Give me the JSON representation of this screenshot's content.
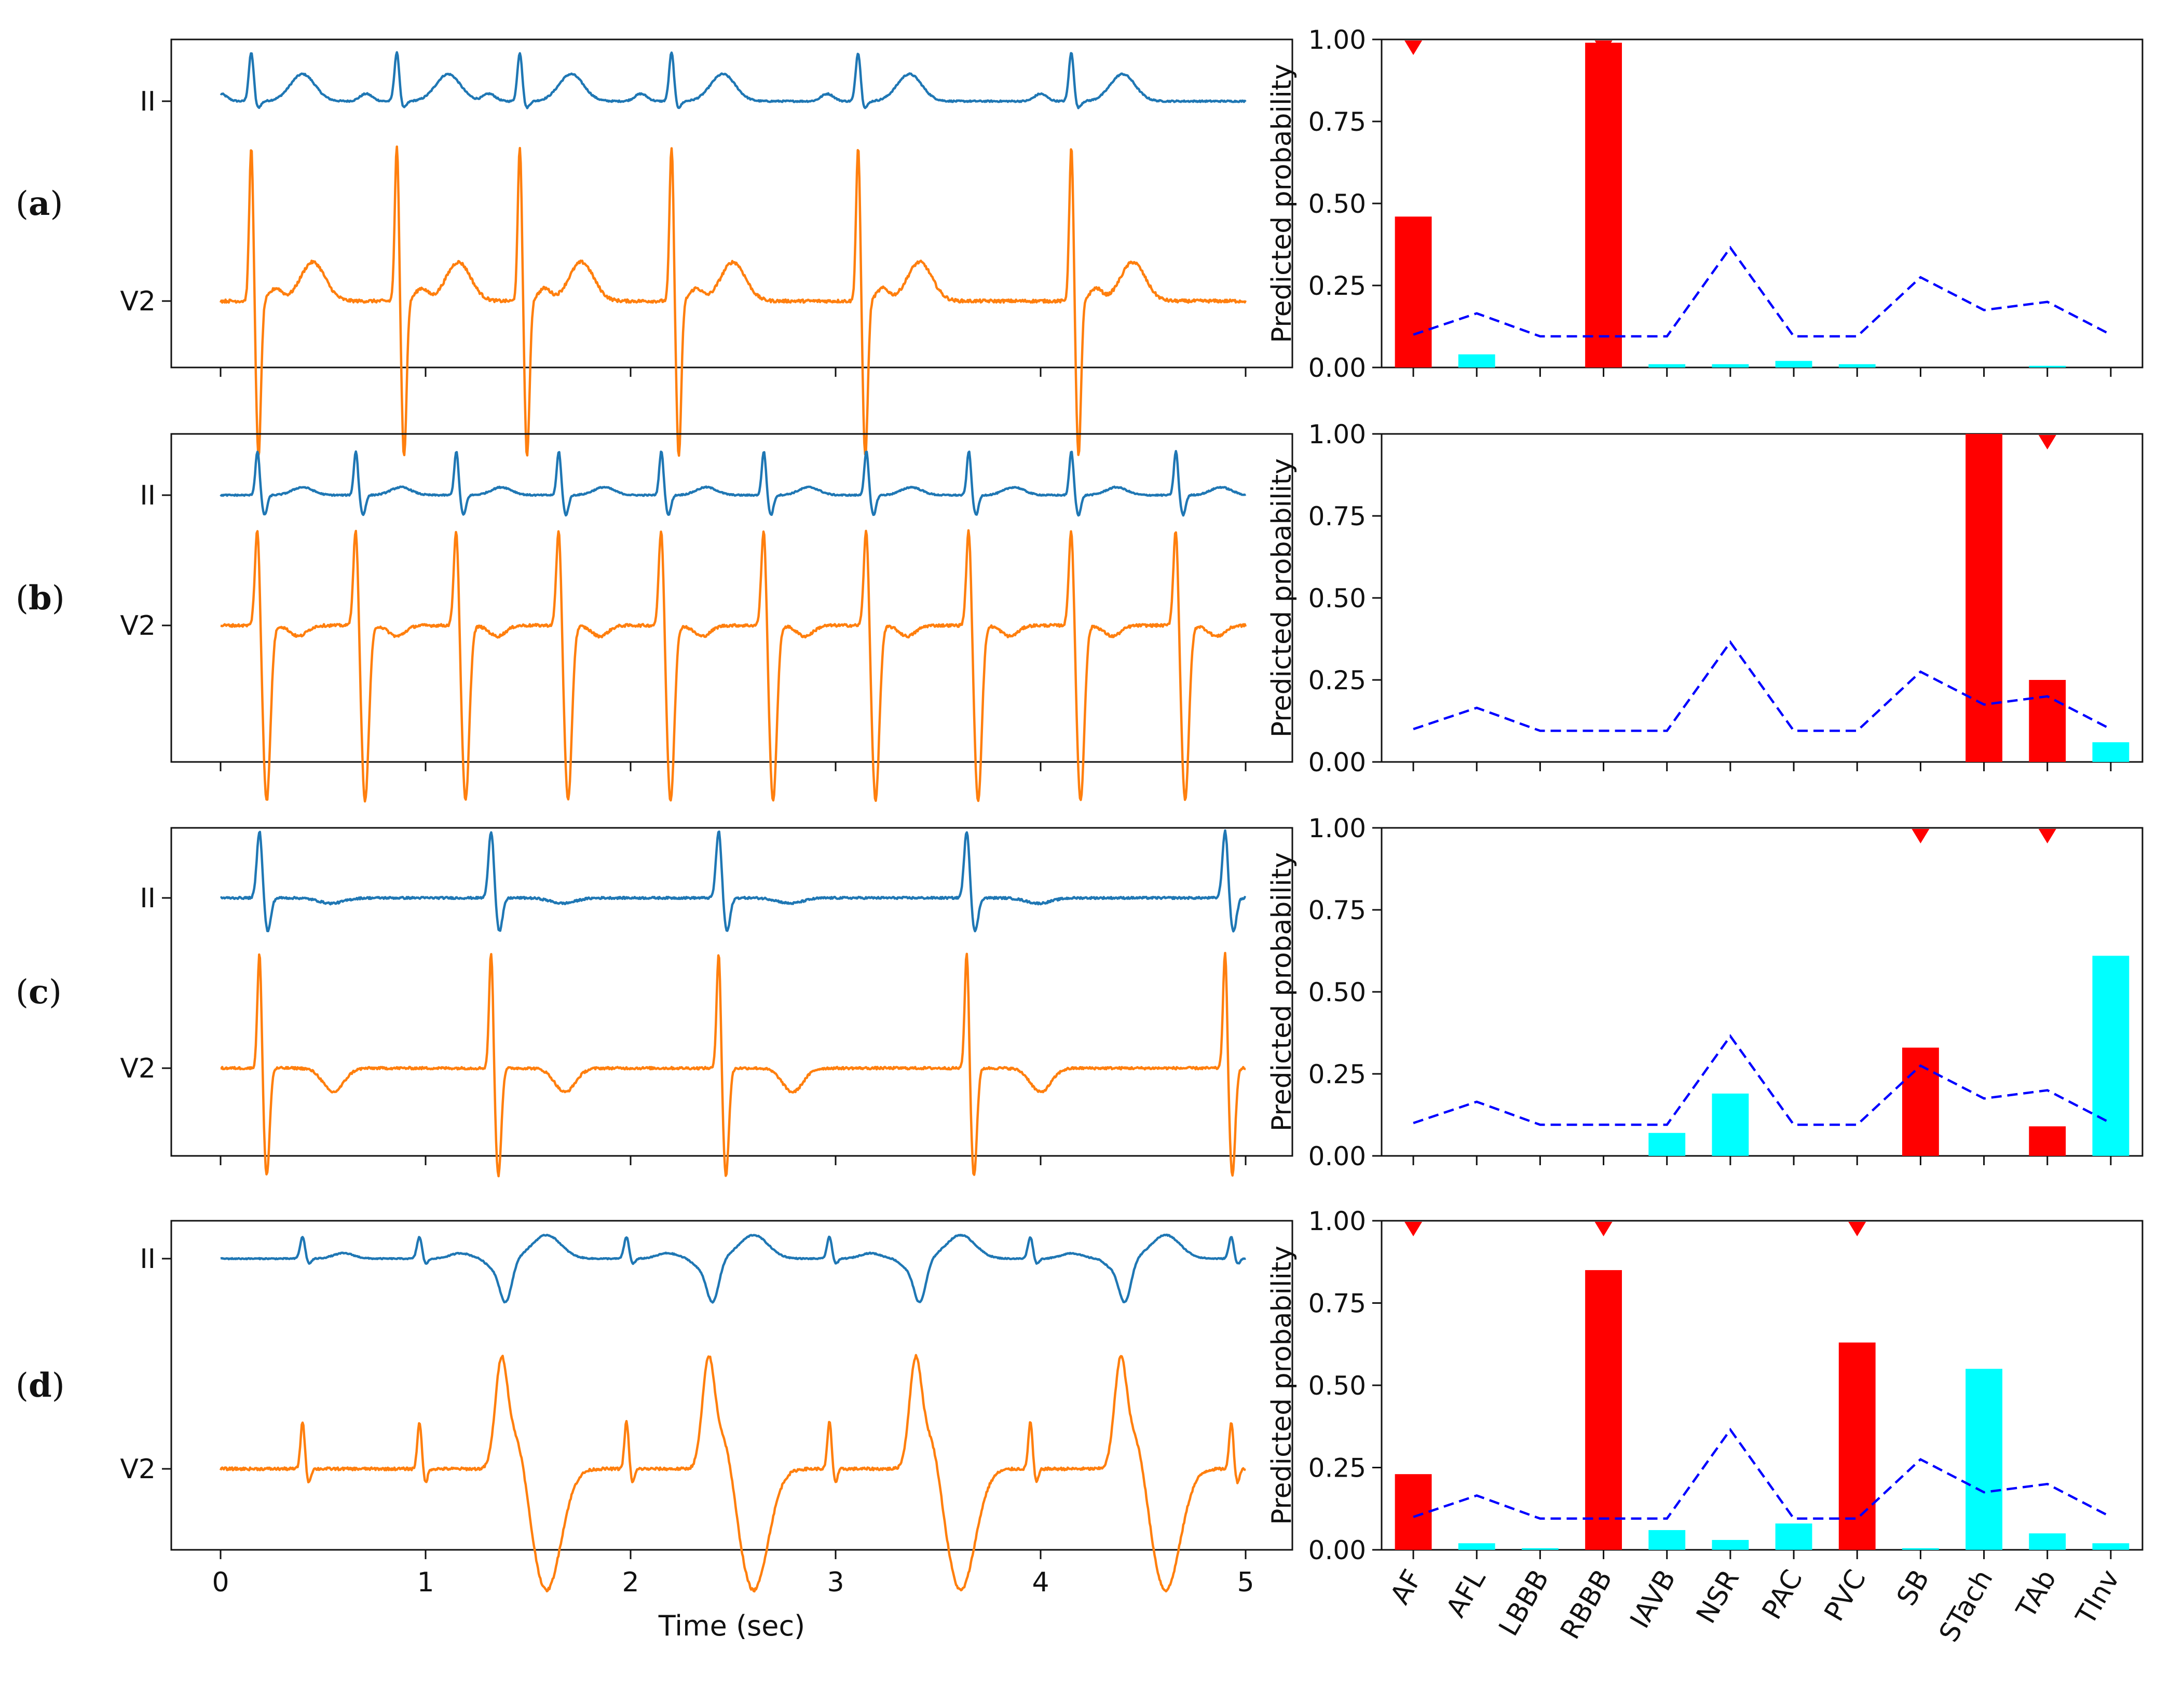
{
  "chart_data": {
    "type": "figure",
    "panels": [
      {
        "label": "a",
        "ecg": {
          "leads": [
            "II",
            "V2"
          ],
          "rr_sec": 0.98,
          "beats": [
            0.15,
            0.86,
            1.46,
            2.2,
            3.11,
            4.15
          ],
          "morph": "normal"
        },
        "bars": {
          "red": [
            0.46,
            0,
            0,
            0.99,
            0,
            0,
            0,
            0,
            0,
            0,
            0,
            0
          ],
          "cyan": [
            0,
            0.04,
            0,
            0,
            0.01,
            0.01,
            0.02,
            0.01,
            0,
            0,
            0.005,
            0
          ]
        },
        "markers": [
          "AF",
          "RBBB"
        ]
      },
      {
        "label": "b",
        "ecg": {
          "leads": [
            "II",
            "V2"
          ],
          "beats": [
            0.18,
            0.66,
            1.15,
            1.65,
            2.15,
            2.65,
            3.15,
            3.65,
            4.15,
            4.66
          ],
          "morph": "tachy"
        },
        "bars": {
          "red": [
            0,
            0,
            0,
            0,
            0,
            0,
            0,
            0,
            0,
            1.0,
            0.25,
            0
          ],
          "cyan": [
            0,
            0,
            0,
            0,
            0,
            0,
            0,
            0,
            0,
            0,
            0,
            0.06
          ]
        },
        "markers": [
          "TAb"
        ]
      },
      {
        "label": "c",
        "ecg": {
          "leads": [
            "II",
            "V2"
          ],
          "beats": [
            0.19,
            1.32,
            2.43,
            3.64,
            4.9
          ],
          "morph": "tinv"
        },
        "bars": {
          "red": [
            0,
            0,
            0,
            0,
            0,
            0,
            0,
            0,
            0.33,
            0,
            0.09,
            0
          ],
          "cyan": [
            0,
            0,
            0,
            0,
            0.07,
            0.19,
            0,
            0,
            0,
            0,
            0,
            0.61
          ]
        },
        "markers": [
          "SB",
          "TAb"
        ]
      },
      {
        "label": "d",
        "ecg": {
          "leads": [
            "II",
            "V2"
          ],
          "normal_beats": [
            0.4,
            0.97,
            1.98,
            2.97,
            3.95,
            4.93
          ],
          "pvc_beats": [
            1.37,
            2.38,
            3.39,
            4.39
          ],
          "morph": "pvc"
        },
        "bars": {
          "red": [
            0.23,
            0,
            0,
            0.85,
            0,
            0,
            0,
            0.63,
            0,
            0,
            0,
            0
          ],
          "cyan": [
            0,
            0.02,
            0.005,
            0,
            0.06,
            0.03,
            0.08,
            0,
            0.005,
            0.55,
            0.05,
            0.02
          ]
        },
        "markers": [
          "AF",
          "RBBB",
          "PVC"
        ]
      }
    ],
    "categories": [
      "AF",
      "AFL",
      "LBBB",
      "RBBB",
      "IAVB",
      "NSR",
      "PAC",
      "PVC",
      "SB",
      "STach",
      "TAb",
      "TInv"
    ],
    "threshold": [
      0.1,
      0.165,
      0.095,
      0.095,
      0.095,
      0.365,
      0.095,
      0.095,
      0.275,
      0.175,
      0.2,
      0.1
    ],
    "ecg_xlabel": "Time (sec)",
    "ecg_xticks": [
      "0",
      "1",
      "2",
      "3",
      "4",
      "5"
    ],
    "ecg_xlim": [
      0,
      5
    ],
    "bar_ylabel": "Predicted probability",
    "bar_yticks": [
      "0.00",
      "0.25",
      "0.50",
      "0.75",
      "1.00"
    ],
    "bar_ylim": [
      0,
      1
    ],
    "colors": {
      "lead_ii": "#1f77b4",
      "lead_v2": "#ff7f0e",
      "bar_positive": "#ff0000",
      "bar_negative": "#00ffff",
      "threshold": "#0000ff",
      "marker": "#ff0000"
    }
  }
}
